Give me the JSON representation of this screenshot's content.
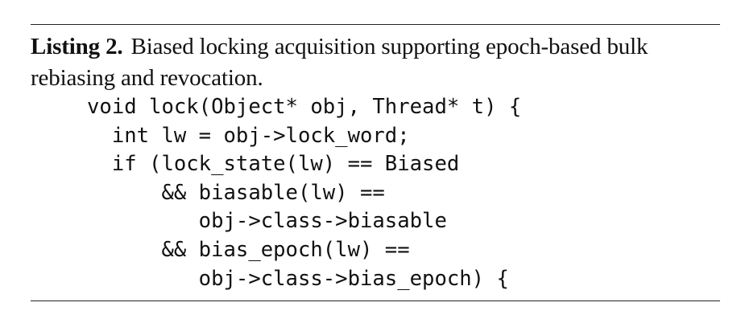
{
  "listing": {
    "label": "Listing 2.",
    "caption_line1": "Biased locking acquisition supporting epoch-based bulk",
    "caption_line2": "rebiasing and revocation.",
    "code_lines": [
      "void lock(Object* obj, Thread* t) {",
      "  int lw = obj->lock_word;",
      "  if (lock_state(lw) == Biased",
      "      && biasable(lw) ==",
      "         obj->class->biasable",
      "      && bias_epoch(lw) ==",
      "         obj->class->bias_epoch) {"
    ]
  }
}
